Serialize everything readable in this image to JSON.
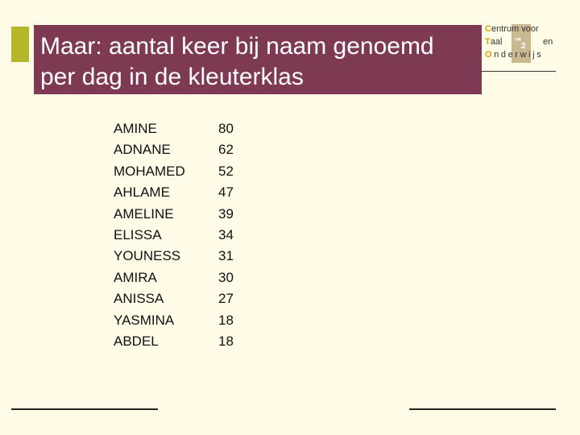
{
  "slide": {
    "title": "Maar: aantal keer bij naam genoemd\nper dag in de kleuterklas",
    "colors": {
      "title_bg": "#7d3a52",
      "accent_bar": "#b5b62a",
      "background": "#fffbe6"
    }
  },
  "logo": {
    "line1_cap": "C",
    "line1_rest": "entrum voor",
    "line2_cap": "T",
    "line2_rest": "aal",
    "line2_right": "en",
    "line3_cap": "O",
    "line3_rest": "nderwijs",
    "square_a": "ⁿᵃ",
    "square_b": "2"
  },
  "names": [
    "AMINE",
    "ADNANE",
    "MOHAMED",
    "AHLAME",
    "AMELINE",
    "ELISSA",
    "YOUNESS",
    "AMIRA",
    "ANISSA",
    "YASMINA",
    "ABDEL"
  ],
  "counts": [
    "80",
    "62",
    "52",
    "47",
    "39",
    "34",
    "31",
    "30",
    "27",
    "18",
    "18"
  ]
}
